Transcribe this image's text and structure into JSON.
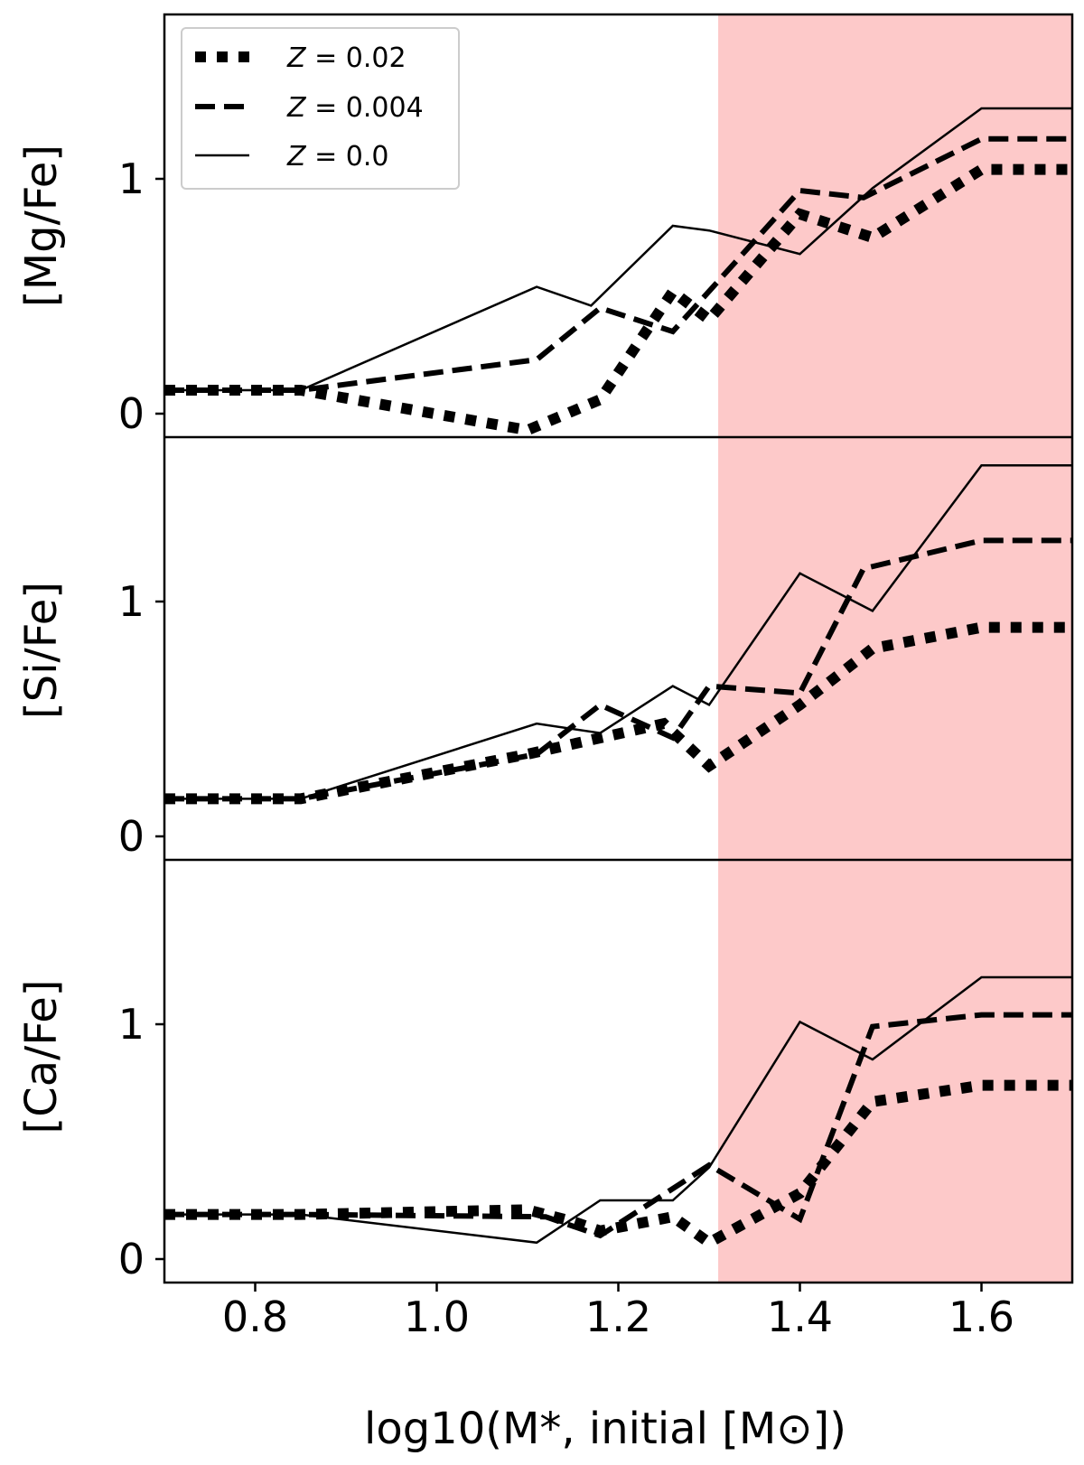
{
  "chart_data": {
    "type": "line",
    "xlabel": "log10(M*, initial [M⊙])",
    "xlim": [
      0.7,
      1.7
    ],
    "x_ticks": [
      "0.8",
      "1.0",
      "1.2",
      "1.4",
      "1.6"
    ],
    "shaded_region": {
      "x_from": 1.31,
      "x_to": 1.7,
      "color": "#fdc9c9"
    },
    "legend": {
      "position": "top-left of top panel",
      "entries": [
        {
          "label_var": "Z",
          "label_eq": "= 0.02",
          "style": "dotted"
        },
        {
          "label_var": "Z",
          "label_eq": "= 0.004",
          "style": "dashed"
        },
        {
          "label_var": "Z",
          "label_eq": "= 0.0",
          "style": "solid"
        }
      ]
    },
    "panels": [
      {
        "ylabel": "[Mg/Fe]",
        "ylim": [
          -0.1,
          1.7
        ],
        "y_ticks": [
          "0",
          "1"
        ],
        "series": [
          {
            "name": "Z = 0.02",
            "style": "dotted",
            "x": [
              0.7,
              0.85,
              1.1,
              1.18,
              1.26,
              1.3,
              1.4,
              1.48,
              1.6,
              1.7
            ],
            "y": [
              0.1,
              0.1,
              -0.07,
              0.06,
              0.52,
              0.4,
              0.85,
              0.75,
              1.04,
              1.04
            ]
          },
          {
            "name": "Z = 0.004",
            "style": "dashed",
            "x": [
              0.7,
              0.85,
              1.11,
              1.18,
              1.26,
              1.4,
              1.47,
              1.6,
              1.7
            ],
            "y": [
              0.1,
              0.1,
              0.23,
              0.45,
              0.35,
              0.95,
              0.92,
              1.17,
              1.17
            ]
          },
          {
            "name": "Z = 0.0",
            "style": "solid",
            "x": [
              0.7,
              0.85,
              1.11,
              1.17,
              1.26,
              1.3,
              1.4,
              1.48,
              1.6,
              1.7
            ],
            "y": [
              0.1,
              0.1,
              0.54,
              0.46,
              0.8,
              0.78,
              0.68,
              0.96,
              1.3,
              1.3
            ]
          }
        ]
      },
      {
        "ylabel": "[Si/Fe]",
        "ylim": [
          -0.1,
          1.7
        ],
        "y_ticks": [
          "0",
          "1"
        ],
        "series": [
          {
            "name": "Z = 0.02",
            "style": "dotted",
            "x": [
              0.7,
              0.85,
              1.1,
              1.25,
              1.3,
              1.4,
              1.48,
              1.6,
              1.7
            ],
            "y": [
              0.16,
              0.16,
              0.35,
              0.48,
              0.3,
              0.56,
              0.8,
              0.89,
              0.89
            ]
          },
          {
            "name": "Z = 0.004",
            "style": "dashed",
            "x": [
              0.7,
              0.85,
              1.11,
              1.18,
              1.26,
              1.3,
              1.4,
              1.47,
              1.6,
              1.7
            ],
            "y": [
              0.16,
              0.16,
              0.35,
              0.56,
              0.42,
              0.64,
              0.61,
              1.14,
              1.26,
              1.26
            ]
          },
          {
            "name": "Z = 0.0",
            "style": "solid",
            "x": [
              0.7,
              0.85,
              1.11,
              1.18,
              1.26,
              1.3,
              1.4,
              1.48,
              1.6,
              1.7
            ],
            "y": [
              0.16,
              0.16,
              0.48,
              0.44,
              0.64,
              0.56,
              1.12,
              0.96,
              1.58,
              1.58
            ]
          }
        ]
      },
      {
        "ylabel": "[Ca/Fe]",
        "ylim": [
          -0.1,
          1.7
        ],
        "y_ticks": [
          "0",
          "1"
        ],
        "series": [
          {
            "name": "Z = 0.02",
            "style": "dotted",
            "x": [
              0.7,
              0.85,
              1.1,
              1.15,
              1.18,
              1.26,
              1.3,
              1.4,
              1.48,
              1.6,
              1.7
            ],
            "y": [
              0.19,
              0.19,
              0.21,
              0.16,
              0.12,
              0.18,
              0.07,
              0.28,
              0.67,
              0.74,
              0.74
            ]
          },
          {
            "name": "Z = 0.004",
            "style": "dashed",
            "x": [
              0.7,
              0.85,
              1.12,
              1.18,
              1.3,
              1.4,
              1.48,
              1.6,
              1.7
            ],
            "y": [
              0.19,
              0.19,
              0.18,
              0.1,
              0.4,
              0.17,
              0.99,
              1.04,
              1.04
            ]
          },
          {
            "name": "Z = 0.0",
            "style": "solid",
            "x": [
              0.7,
              0.85,
              1.11,
              1.18,
              1.26,
              1.3,
              1.4,
              1.48,
              1.6,
              1.7
            ],
            "y": [
              0.19,
              0.19,
              0.07,
              0.25,
              0.25,
              0.39,
              1.01,
              0.85,
              1.2,
              1.2
            ]
          }
        ]
      }
    ]
  }
}
